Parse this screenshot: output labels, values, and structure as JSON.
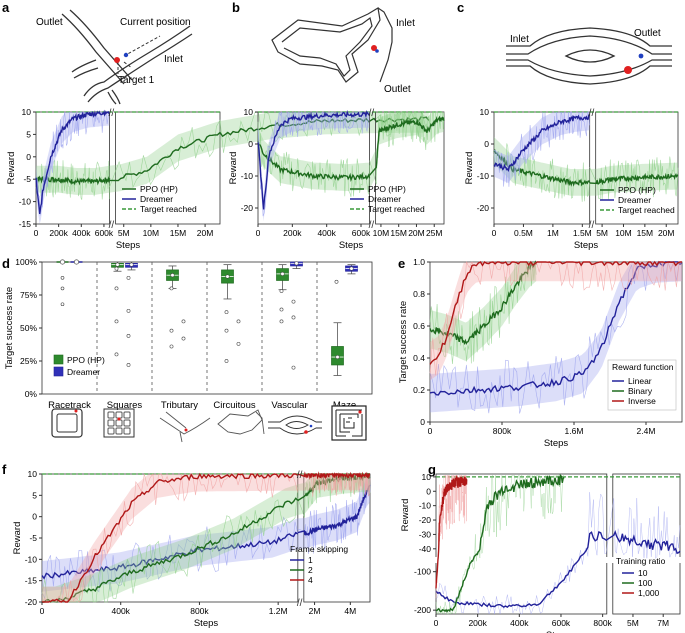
{
  "colors": {
    "ppo_dark": "#1e6b1e",
    "ppo_light": "#8ecf8a",
    "dreamer_dark": "#22229a",
    "dreamer_light": "#9aa0ee",
    "target": "#3a9a3a",
    "red": "#b01818",
    "red_light": "#f0a0a0",
    "marker_red": "#e02020",
    "marker_blue": "#2040c0"
  },
  "panels": {
    "a": {
      "letter": "a",
      "labels": {
        "outlet": "Outlet",
        "current": "Current position",
        "inlet": "Inlet",
        "target": "Target 1"
      }
    },
    "b": {
      "letter": "b",
      "labels": {
        "inlet": "Inlet",
        "outlet": "Outlet"
      }
    },
    "c": {
      "letter": "c",
      "labels": {
        "inlet": "Inlet",
        "outlet": "Outlet"
      }
    },
    "d": {
      "letter": "d"
    },
    "e": {
      "letter": "e"
    },
    "f": {
      "letter": "f"
    },
    "g": {
      "letter": "g"
    }
  },
  "chart_data": [
    {
      "id": "a",
      "type": "line",
      "xlabel": "Steps",
      "ylabel": "Reward",
      "ylim": [
        -15,
        10
      ],
      "yticks": [
        10,
        5,
        0,
        -5,
        -10,
        -15
      ],
      "xticks_left": [
        "0",
        "200k",
        "400k",
        "600k"
      ],
      "xticks_right": [
        "5M",
        "10M",
        "15M",
        "20M"
      ],
      "target": 10,
      "series": [
        {
          "name": "PPO (HP)",
          "style": "ppo",
          "points": [
            [
              0,
              -5
            ],
            [
              0.3,
              -5
            ],
            [
              0.55,
              -5.5
            ],
            [
              0.8,
              -5.5
            ],
            [
              1.0,
              -5
            ],
            [
              1.3,
              -3
            ],
            [
              1.6,
              2
            ],
            [
              2.0,
              5
            ],
            [
              2.5,
              7
            ],
            [
              3.0,
              8
            ],
            [
              3.5,
              8.3
            ],
            [
              4.0,
              8.4
            ]
          ]
        },
        {
          "name": "Dreamer",
          "style": "dreamer",
          "points": [
            [
              0,
              -5
            ],
            [
              0.05,
              -13
            ],
            [
              0.1,
              -7
            ],
            [
              0.2,
              0
            ],
            [
              0.35,
              6
            ],
            [
              0.5,
              8.5
            ],
            [
              0.7,
              9.5
            ],
            [
              1.0,
              10
            ]
          ]
        },
        {
          "name": "Target reached",
          "style": "target"
        }
      ]
    },
    {
      "id": "b",
      "type": "line",
      "xlabel": "Steps",
      "ylabel": "Reward",
      "ylim": [
        -25,
        10
      ],
      "yticks": [
        10,
        0,
        -10,
        -20
      ],
      "xticks_left": [
        "0",
        "200k",
        "400k",
        "600k"
      ],
      "xticks_right": [
        "10M",
        "15M",
        "20M",
        "25M"
      ],
      "target": 10,
      "series": [
        {
          "name": "PPO (HP)",
          "style": "ppo",
          "points": [
            [
              0,
              1
            ],
            [
              0.05,
              -3
            ],
            [
              0.2,
              -8
            ],
            [
              0.5,
              -10
            ],
            [
              0.8,
              -10.5
            ],
            [
              1.0,
              -10
            ],
            [
              1.05,
              4
            ],
            [
              1.3,
              6
            ],
            [
              1.6,
              7
            ],
            [
              1.75,
              4
            ],
            [
              1.9,
              7.5
            ],
            [
              2.0,
              8
            ]
          ]
        },
        {
          "name": "Dreamer",
          "style": "dreamer",
          "points": [
            [
              0,
              1
            ],
            [
              0.05,
              -20
            ],
            [
              0.1,
              -3
            ],
            [
              0.2,
              6
            ],
            [
              0.3,
              8
            ],
            [
              0.6,
              9
            ],
            [
              1.0,
              9.3
            ]
          ]
        },
        {
          "name": "Target reached",
          "style": "target"
        }
      ]
    },
    {
      "id": "c",
      "type": "line",
      "xlabel": "Steps",
      "ylabel": "Reward",
      "ylim": [
        -25,
        10
      ],
      "yticks": [
        10,
        0,
        -10,
        -20
      ],
      "xticks_left": [
        "0",
        "0.5M",
        "1M",
        "1.5M"
      ],
      "xticks_right": [
        "5M",
        "10M",
        "15M",
        "20M"
      ],
      "target": 10,
      "series": [
        {
          "name": "PPO (HP)",
          "style": "ppo",
          "points": [
            [
              0,
              -2
            ],
            [
              0.2,
              -8
            ],
            [
              0.5,
              -10
            ],
            [
              0.8,
              -12
            ],
            [
              1.0,
              -12
            ],
            [
              1.2,
              -11
            ],
            [
              1.5,
              -10.5
            ],
            [
              2.0,
              -10
            ]
          ]
        },
        {
          "name": "Dreamer",
          "style": "dreamer",
          "points": [
            [
              0,
              -6
            ],
            [
              0.15,
              -8
            ],
            [
              0.3,
              -2
            ],
            [
              0.5,
              4
            ],
            [
              0.7,
              7
            ],
            [
              0.85,
              8
            ],
            [
              1.0,
              8.5
            ]
          ]
        },
        {
          "name": "Target reached",
          "style": "target"
        }
      ]
    },
    {
      "id": "d",
      "type": "box",
      "ylabel": "Target success rate",
      "yticks": [
        "100%",
        "75%",
        "50%",
        "25%",
        "0%"
      ],
      "categories": [
        "Racetrack",
        "Squares",
        "Tributary",
        "Circuitous",
        "Vascular",
        "Maze"
      ],
      "series": [
        {
          "name": "PPO (HP)",
          "boxes": [
            null,
            {
              "q1": 96,
              "med": 98,
              "q3": 99,
              "lo": 93,
              "hi": 100
            },
            {
              "q1": 86,
              "med": 90,
              "q3": 94,
              "lo": 80,
              "hi": 97
            },
            {
              "q1": 84,
              "med": 89,
              "q3": 94,
              "lo": 72,
              "hi": 98
            },
            {
              "q1": 86,
              "med": 91,
              "q3": 95,
              "lo": 79,
              "hi": 98
            },
            {
              "q1": 22,
              "med": 28,
              "q3": 36,
              "lo": 14,
              "hi": 54
            }
          ]
        },
        {
          "name": "Dreamer",
          "boxes": [
            null,
            {
              "q1": 96,
              "med": 98,
              "q3": 99,
              "lo": 94,
              "hi": 100
            },
            null,
            null,
            {
              "q1": 97,
              "med": 99,
              "q3": 100,
              "lo": 95,
              "hi": 100
            },
            {
              "q1": 93,
              "med": 95,
              "q3": 97,
              "lo": 91,
              "hi": 98
            }
          ]
        }
      ]
    },
    {
      "id": "e",
      "type": "line",
      "xlabel": "Steps",
      "ylabel": "Target success rate",
      "xlim": [
        0,
        2.8
      ],
      "ylim": [
        0,
        1.0
      ],
      "xticks": [
        "0",
        "800k",
        "1.6M",
        "2.4M"
      ],
      "yticks": [
        "0",
        "0.2",
        "0.4",
        "0.6",
        "0.8",
        "1.0"
      ],
      "legend_title": "Reward function",
      "series": [
        {
          "name": "Linear",
          "style": "dreamer",
          "points": [
            [
              0,
              0.18
            ],
            [
              0.5,
              0.2
            ],
            [
              1.0,
              0.22
            ],
            [
              1.4,
              0.25
            ],
            [
              1.7,
              0.3
            ],
            [
              1.9,
              0.45
            ],
            [
              2.1,
              0.75
            ],
            [
              2.3,
              0.95
            ],
            [
              2.5,
              0.99
            ],
            [
              2.8,
              1.0
            ]
          ]
        },
        {
          "name": "Binary",
          "style": "ppo",
          "points": [
            [
              0,
              0.58
            ],
            [
              0.2,
              0.55
            ],
            [
              0.4,
              0.5
            ],
            [
              0.6,
              0.6
            ],
            [
              0.8,
              0.72
            ],
            [
              0.95,
              0.85
            ],
            [
              1.1,
              0.96
            ],
            [
              1.18,
              1.0
            ]
          ]
        },
        {
          "name": "Inverse",
          "style": "red",
          "points": [
            [
              0,
              0.38
            ],
            [
              0.1,
              0.42
            ],
            [
              0.2,
              0.55
            ],
            [
              0.3,
              0.75
            ],
            [
              0.4,
              0.92
            ],
            [
              0.5,
              0.99
            ],
            [
              0.6,
              1.0
            ],
            [
              2.8,
              1.0
            ]
          ]
        }
      ]
    },
    {
      "id": "f",
      "type": "line",
      "xlabel": "Steps",
      "ylabel": "Reward",
      "ylim": [
        -20,
        10
      ],
      "yticks": [
        10,
        5,
        0,
        -5,
        -10,
        -15,
        -20
      ],
      "xticks_left": [
        "0",
        "400k",
        "800k",
        "1.2M"
      ],
      "xticks_right": [
        "2M",
        "4M"
      ],
      "target": 10,
      "legend_title": "Frame skipping",
      "series": [
        {
          "name": "1",
          "style": "dreamer",
          "points": [
            [
              0,
              -14
            ],
            [
              0.3,
              -12
            ],
            [
              0.6,
              -8
            ],
            [
              0.9,
              -6
            ],
            [
              1.0,
              -4
            ],
            [
              1.2,
              -3
            ],
            [
              1.5,
              -2
            ],
            [
              1.8,
              0
            ],
            [
              1.95,
              6
            ],
            [
              2.0,
              7
            ]
          ]
        },
        {
          "name": "2",
          "style": "ppo",
          "points": [
            [
              0,
              -20
            ],
            [
              0.05,
              -20
            ],
            [
              0.2,
              -17
            ],
            [
              0.35,
              -13
            ],
            [
              0.55,
              -9
            ],
            [
              0.75,
              -4
            ],
            [
              0.95,
              3
            ],
            [
              1.2,
              8
            ],
            [
              1.6,
              9
            ],
            [
              2.0,
              9.5
            ]
          ]
        },
        {
          "name": "4",
          "style": "red",
          "points": [
            [
              0,
              -20
            ],
            [
              0.1,
              -20
            ],
            [
              0.2,
              -10
            ],
            [
              0.35,
              3
            ],
            [
              0.45,
              8
            ],
            [
              0.6,
              9.5
            ],
            [
              1.2,
              9.8
            ],
            [
              2.0,
              9.8
            ]
          ]
        }
      ]
    },
    {
      "id": "g",
      "type": "line",
      "xlabel": "Steps",
      "ylabel": "Reward",
      "yticks_top": [
        "10",
        "0",
        "-10",
        "-20",
        "-30",
        "-40"
      ],
      "yticks_bottom": [
        "-100",
        "-200"
      ],
      "xticks_left": [
        "0",
        "200k",
        "400k",
        "600k",
        "800k"
      ],
      "xticks_right": [
        "5M",
        "7M"
      ],
      "target": 10,
      "legend_title": "Training ratio",
      "series": [
        {
          "name": "10",
          "style": "dreamer",
          "points": [
            [
              0,
              -150
            ],
            [
              0.1,
              -180
            ],
            [
              0.4,
              -190
            ],
            [
              0.6,
              -185
            ],
            [
              0.75,
              -120
            ],
            [
              0.9,
              -30
            ],
            [
              1.2,
              -35
            ],
            [
              1.5,
              -40
            ]
          ]
        },
        {
          "name": "100",
          "style": "ppo",
          "points": [
            [
              0,
              -200
            ],
            [
              0.1,
              -200
            ],
            [
              0.2,
              -80
            ],
            [
              0.3,
              -10
            ],
            [
              0.4,
              2
            ],
            [
              0.55,
              6
            ],
            [
              0.75,
              8
            ]
          ]
        },
        {
          "name": "1,000",
          "style": "red",
          "points": [
            [
              0,
              -140
            ],
            [
              0.02,
              -20
            ],
            [
              0.05,
              0
            ],
            [
              0.1,
              5
            ],
            [
              0.18,
              8
            ]
          ]
        }
      ]
    }
  ]
}
